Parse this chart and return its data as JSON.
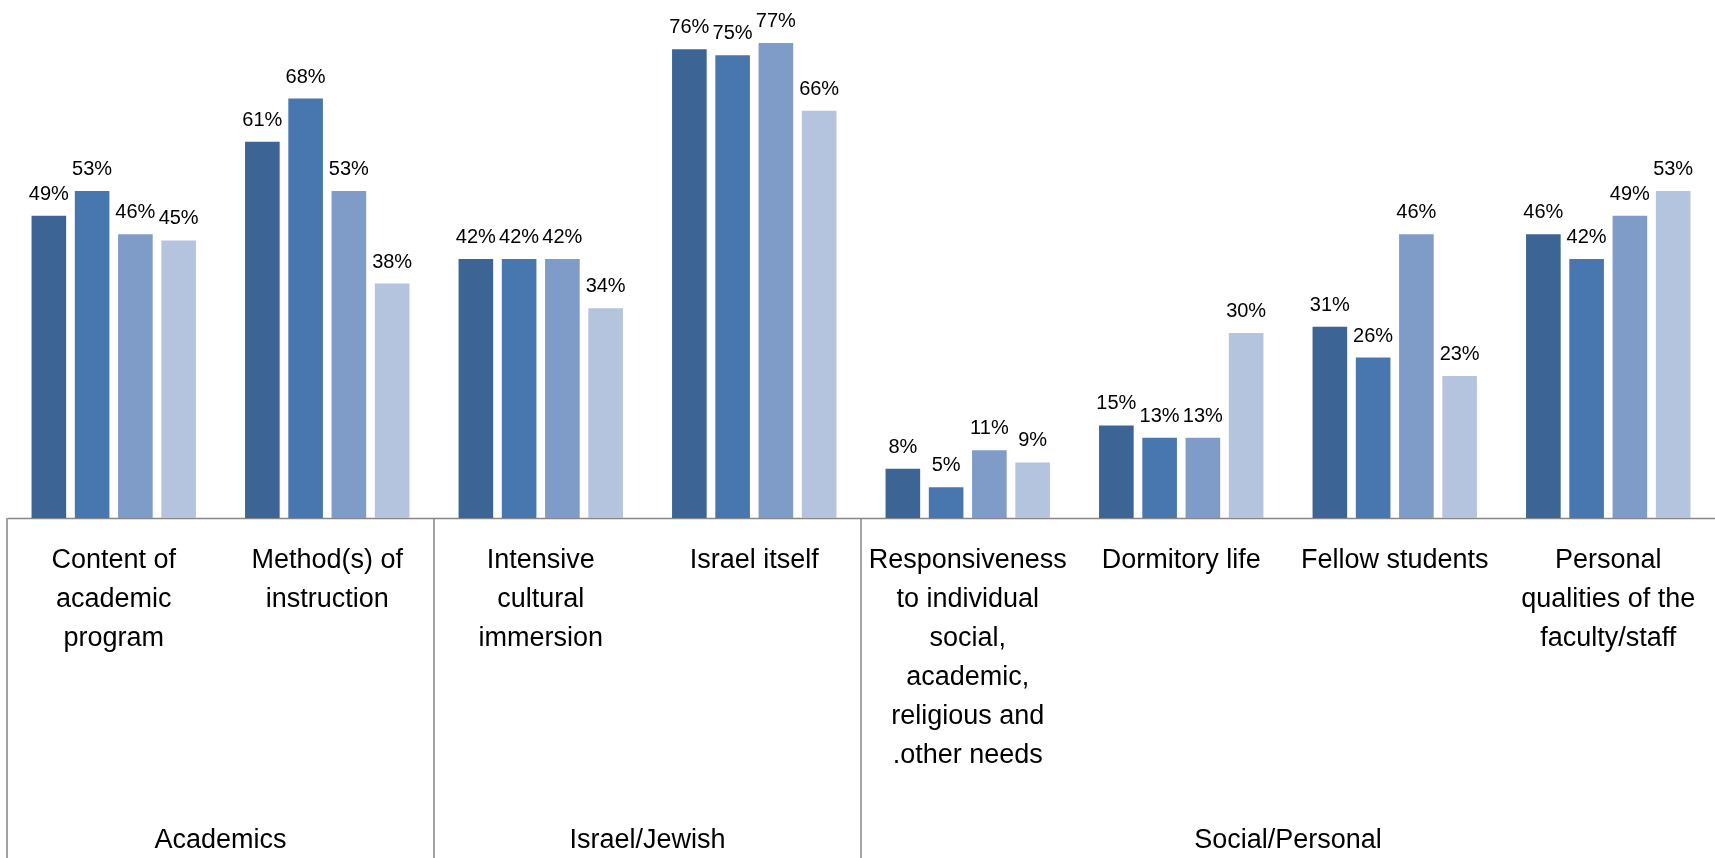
{
  "chart_data": {
    "type": "bar",
    "categories": [
      "Content of academic program",
      "Method(s) of instruction",
      "Intensive cultural immersion",
      "Israel itself",
      "Responsiveness to individual social, academic, religious and .other needs",
      "Dormitory life",
      "Fellow students",
      "Personal qualities of the faculty/staff"
    ],
    "series": [
      {
        "color": "#3c6494",
        "values": [
          49,
          61,
          42,
          76,
          8,
          15,
          31,
          46
        ],
        "value_labels": [
          "49%",
          "61%",
          "42%",
          "76%",
          "8%",
          "15%",
          "31%",
          "46%"
        ]
      },
      {
        "color": "#4877af",
        "values": [
          53,
          68,
          42,
          75,
          5,
          13,
          26,
          42
        ],
        "value_labels": [
          "53%",
          "68%",
          "42%",
          "75%",
          "5%",
          "13%",
          "26%",
          "42%"
        ]
      },
      {
        "color": "#7f9cc8",
        "values": [
          46,
          53,
          42,
          77,
          11,
          13,
          46,
          49
        ],
        "value_labels": [
          "46%",
          "53%",
          "42%",
          "77%",
          "11%",
          "13%",
          "46%",
          "49%"
        ]
      },
      {
        "color": "#b4c3de",
        "values": [
          45,
          38,
          34,
          66,
          9,
          30,
          23,
          53
        ],
        "value_labels": [
          "45%",
          "38%",
          "34%",
          "66%",
          "9%",
          "30%",
          "23%",
          "53%"
        ]
      }
    ],
    "annotations": [
      "Academics",
      "Israel/Jewish",
      "Social/Personal"
    ]
  }
}
